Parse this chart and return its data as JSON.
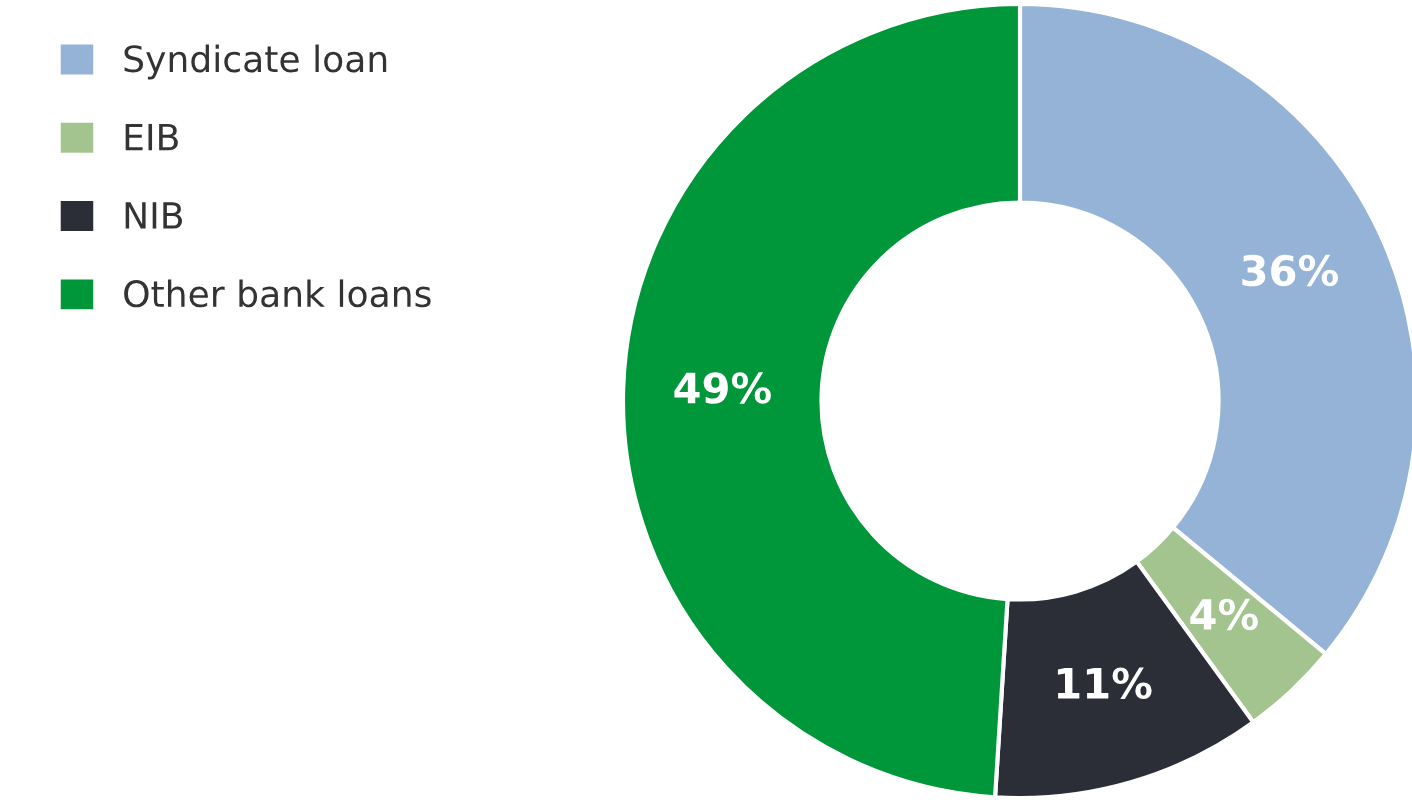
{
  "chart_data": {
    "type": "donut",
    "categories": [
      "Syndicate loan",
      "EIB",
      "NIB",
      "Other bank loans"
    ],
    "values": [
      36,
      4,
      11,
      49
    ],
    "colors": [
      "#95b3d7",
      "#a3c48f",
      "#2b2e37",
      "#00963a"
    ],
    "value_labels": [
      "36%",
      "4%",
      "11%",
      "49%"
    ],
    "legend": "left"
  }
}
